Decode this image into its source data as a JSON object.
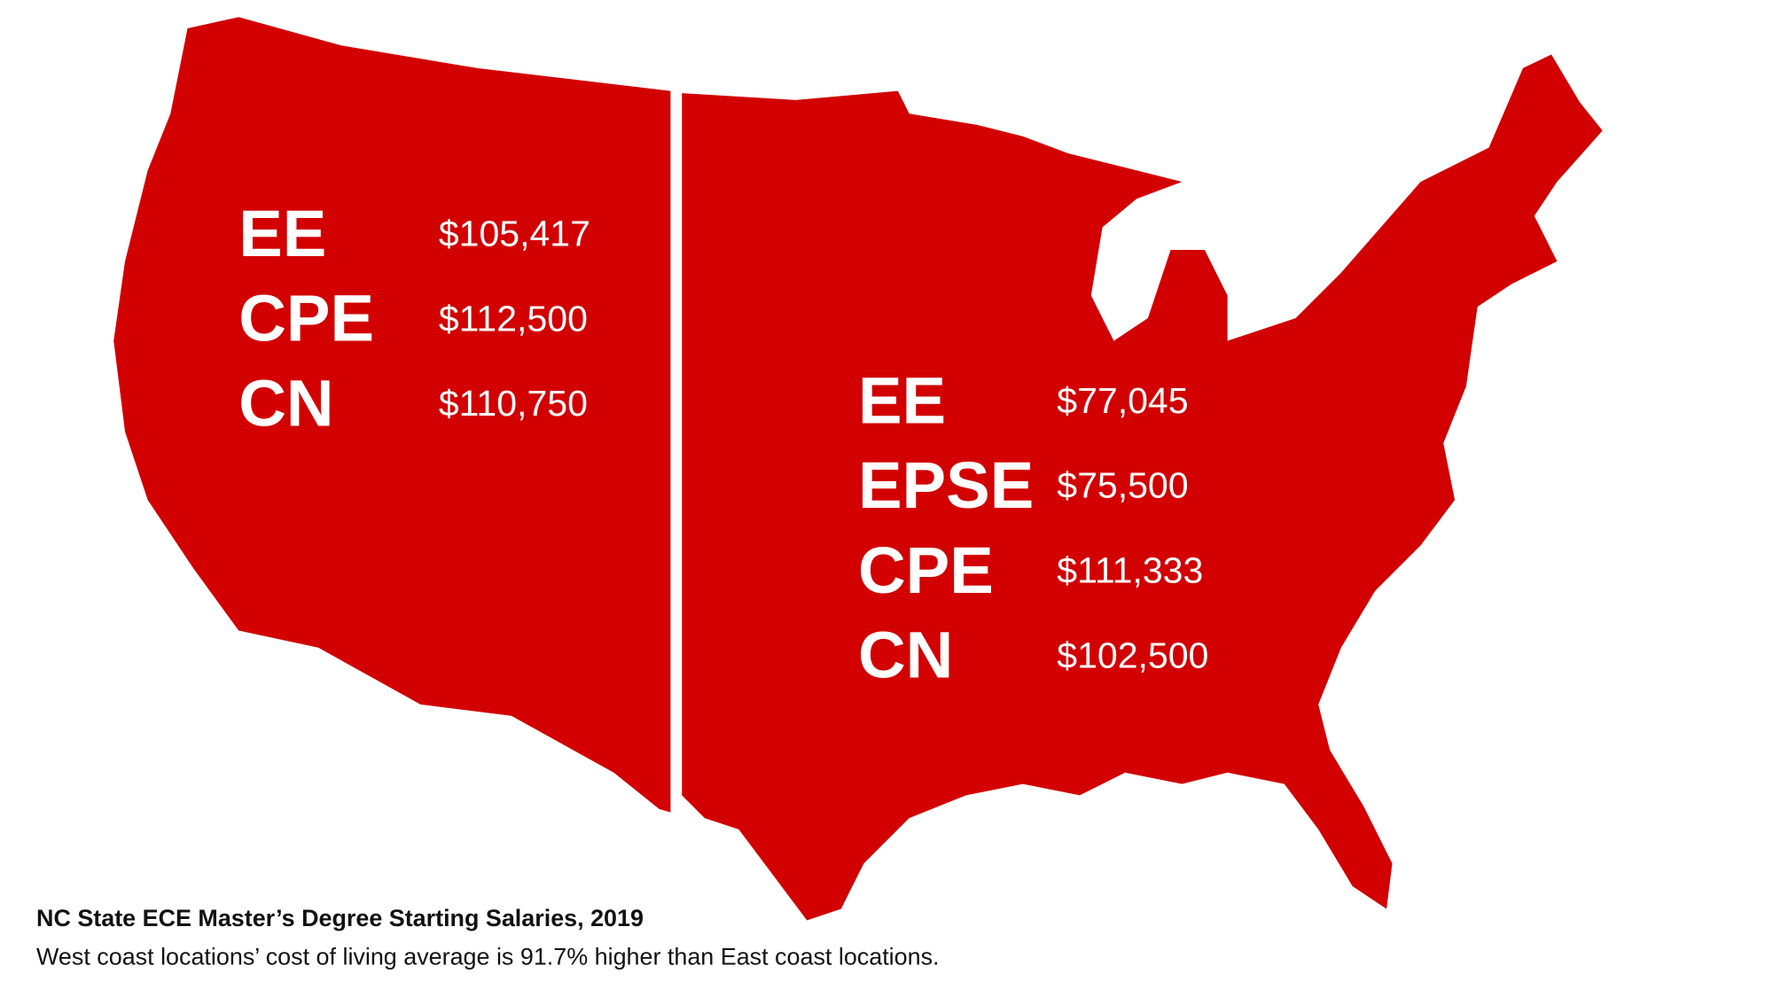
{
  "regions": [
    {
      "items": [
        {
          "label": "EE",
          "value": "$105,417"
        },
        {
          "label": "CPE",
          "value": "$112,500"
        },
        {
          "label": "CN",
          "value": "$110,750"
        }
      ]
    },
    {
      "items": [
        {
          "label": "EE",
          "value": "$77,045"
        },
        {
          "label": "EPSE",
          "value": "$75,500"
        },
        {
          "label": "CPE",
          "value": "$111,333"
        },
        {
          "label": "CN",
          "value": "$102,500"
        }
      ]
    }
  ],
  "title": "NC State ECE Master’s Degree Starting Salaries, 2019",
  "subtitle": "West coast locations’ cost of living average is 91.7% higher than East coast locations."
}
